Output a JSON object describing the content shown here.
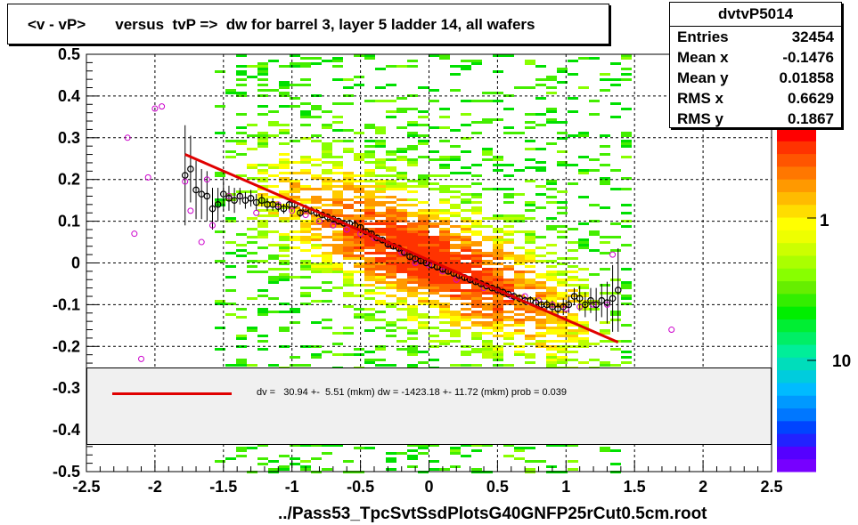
{
  "title": "<v - vP>       versus  tvP =>  dw for barrel 3, layer 5 ladder 14, all wafers",
  "footer": "../Pass53_TpcSvtSsdPlotsG40GNFP25rCut0.5cm.root",
  "stats": {
    "name": "dvtvP5014",
    "rows": [
      {
        "key": "Entries",
        "value": "32454"
      },
      {
        "key": "Mean x",
        "value": "-0.1476"
      },
      {
        "key": "Mean y",
        "value": "0.01858"
      },
      {
        "key": "RMS x",
        "value": "0.6629"
      },
      {
        "key": "RMS y",
        "value": "0.1867"
      }
    ]
  },
  "fit_legend": "dv =   30.94 +-  5.51 (mkm) dw = -1423.18 +- 11.72 (mkm) prob = 0.039",
  "colors": {
    "fit": "#e00000",
    "profile": "#000000",
    "open_markers": "#cc00cc"
  },
  "chart_data": {
    "type": "heatmap",
    "xlim": [
      -2.5,
      2.5
    ],
    "ylim": [
      -0.5,
      0.5
    ],
    "x_ticks": [
      "-2.5",
      "-2",
      "-1.5",
      "-1",
      "-0.5",
      "0",
      "0.5",
      "1",
      "1.5",
      "2",
      "2.5"
    ],
    "y_ticks": [
      "-0.5",
      "-0.4",
      "-0.3",
      "-0.2",
      "-0.1",
      "0",
      "0.1",
      "0.2",
      "0.3",
      "0.4",
      "0.5"
    ],
    "z_labels": [
      "1",
      "10"
    ],
    "grid": true,
    "fit_line": {
      "x": [
        -1.78,
        1.38
      ],
      "y": [
        0.26,
        -0.19
      ]
    },
    "profile": {
      "x": [
        -1.78,
        -1.74,
        -1.7,
        -1.66,
        -1.62,
        -1.58,
        -1.54,
        -1.5,
        -1.46,
        -1.42,
        -1.38,
        -1.34,
        -1.3,
        -1.26,
        -1.22,
        -1.18,
        -1.14,
        -1.1,
        -1.06,
        -1.02,
        -0.98,
        -0.94,
        -0.9,
        -0.86,
        -0.82,
        -0.78,
        -0.74,
        -0.7,
        -0.66,
        -0.62,
        -0.58,
        -0.54,
        -0.5,
        -0.46,
        -0.42,
        -0.38,
        -0.34,
        -0.3,
        -0.26,
        -0.22,
        -0.18,
        -0.14,
        -0.1,
        -0.06,
        -0.02,
        0.02,
        0.06,
        0.1,
        0.14,
        0.18,
        0.22,
        0.26,
        0.3,
        0.34,
        0.38,
        0.42,
        0.46,
        0.5,
        0.54,
        0.58,
        0.62,
        0.66,
        0.7,
        0.74,
        0.78,
        0.82,
        0.86,
        0.9,
        0.94,
        0.98,
        1.02,
        1.06,
        1.1,
        1.14,
        1.18,
        1.22,
        1.26,
        1.3,
        1.34,
        1.38
      ],
      "y": [
        0.21,
        0.225,
        0.175,
        0.165,
        0.16,
        0.13,
        0.14,
        0.165,
        0.155,
        0.15,
        0.16,
        0.15,
        0.155,
        0.145,
        0.15,
        0.14,
        0.14,
        0.135,
        0.13,
        0.14,
        0.14,
        0.12,
        0.13,
        0.125,
        0.12,
        0.115,
        0.11,
        0.105,
        0.1,
        0.095,
        0.095,
        0.09,
        0.085,
        0.075,
        0.07,
        0.06,
        0.055,
        0.045,
        0.04,
        0.035,
        0.025,
        0.015,
        0.01,
        0.005,
        0.0,
        -0.005,
        -0.01,
        -0.015,
        -0.02,
        -0.025,
        -0.03,
        -0.035,
        -0.04,
        -0.045,
        -0.05,
        -0.055,
        -0.06,
        -0.065,
        -0.07,
        -0.075,
        -0.08,
        -0.085,
        -0.09,
        -0.09,
        -0.095,
        -0.1,
        -0.1,
        -0.105,
        -0.11,
        -0.105,
        -0.1,
        -0.08,
        -0.085,
        -0.1,
        -0.09,
        -0.1,
        -0.09,
        -0.095,
        -0.085,
        -0.065
      ],
      "err": [
        0.12,
        0.08,
        0.07,
        0.06,
        0.06,
        0.05,
        0.04,
        0.04,
        0.03,
        0.03,
        0.02,
        0.02,
        0.02,
        0.02,
        0.015,
        0.015,
        0.015,
        0.012,
        0.012,
        0.012,
        0.01,
        0.01,
        0.01,
        0.01,
        0.01,
        0.008,
        0.008,
        0.008,
        0.008,
        0.008,
        0.008,
        0.008,
        0.008,
        0.008,
        0.008,
        0.008,
        0.008,
        0.008,
        0.008,
        0.008,
        0.008,
        0.008,
        0.008,
        0.008,
        0.008,
        0.008,
        0.008,
        0.008,
        0.008,
        0.008,
        0.008,
        0.008,
        0.008,
        0.008,
        0.008,
        0.008,
        0.008,
        0.008,
        0.008,
        0.008,
        0.01,
        0.01,
        0.01,
        0.01,
        0.012,
        0.012,
        0.012,
        0.015,
        0.015,
        0.02,
        0.02,
        0.02,
        0.03,
        0.03,
        0.03,
        0.04,
        0.04,
        0.05,
        0.08,
        0.1
      ]
    },
    "open_points": {
      "x": [
        -2.2,
        -2.15,
        -2.1,
        -2.05,
        -2.0,
        -1.95,
        -1.78,
        -1.74,
        -1.66,
        -1.62,
        -1.58,
        -1.46,
        -1.38,
        -1.26,
        -1.1,
        -1.0,
        -0.9,
        -0.8,
        -0.7,
        -0.6,
        -0.5,
        -0.4,
        -0.3,
        -0.2,
        -0.1,
        0.0,
        0.1,
        0.2,
        0.3,
        0.4,
        0.5,
        0.6,
        0.7,
        0.8,
        0.9,
        1.0,
        1.1,
        1.2,
        1.3,
        1.34,
        1.77
      ],
      "y": [
        0.3,
        0.07,
        -0.23,
        0.205,
        0.37,
        0.375,
        0.195,
        0.125,
        0.05,
        0.2,
        0.09,
        0.16,
        0.16,
        0.12,
        0.14,
        0.125,
        0.115,
        0.1,
        0.09,
        0.08,
        0.07,
        0.06,
        0.045,
        0.025,
        0.0,
        -0.005,
        -0.02,
        -0.04,
        -0.04,
        -0.06,
        -0.065,
        -0.08,
        -0.08,
        -0.09,
        -0.1,
        -0.11,
        -0.105,
        -0.1,
        -0.1,
        0.02,
        -0.16
      ]
    }
  }
}
